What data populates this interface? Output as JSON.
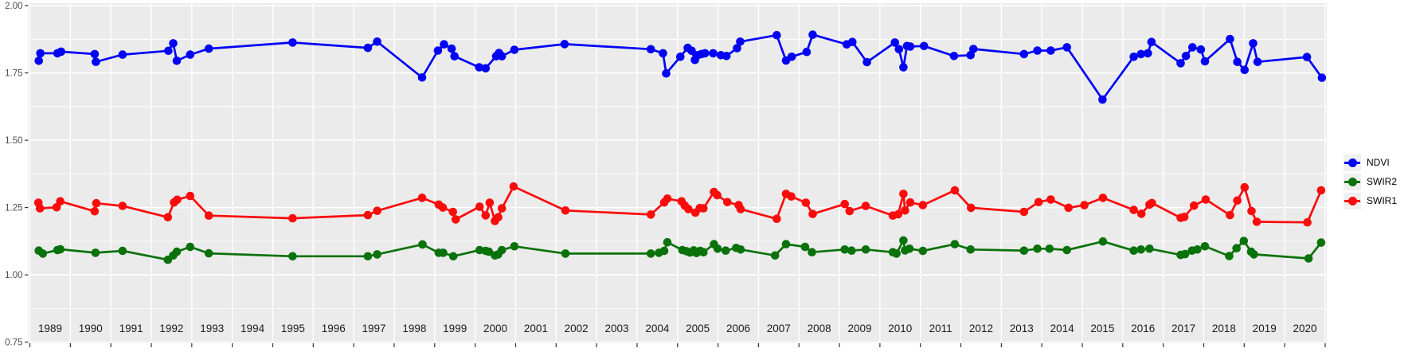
{
  "chart_data": {
    "type": "line",
    "title": "",
    "xlabel": "",
    "ylabel": "",
    "grid": true,
    "legend_position": "right",
    "x_ticks": [
      1989,
      1990,
      1991,
      1992,
      1993,
      1994,
      1995,
      1996,
      1997,
      1998,
      1999,
      2000,
      2001,
      2002,
      2003,
      2004,
      2005,
      2006,
      2007,
      2008,
      2009,
      2010,
      2011,
      2012,
      2013,
      2014,
      2015,
      2016,
      2017,
      2018,
      2019,
      2020
    ],
    "x_range": [
      1988.46,
      2020.54
    ],
    "y_range": [
      0.746,
      2.009
    ],
    "y_major_ticks": [
      0.75,
      1.0,
      1.25,
      1.5,
      1.75,
      2.0
    ],
    "y_minor_ticks": [
      0.875,
      1.125,
      1.375,
      1.625,
      1.875
    ],
    "series": [
      {
        "name": "NDVI",
        "color": "#0202f5",
        "points": [
          [
            1988.72,
            1.795
          ],
          [
            1988.76,
            1.823
          ],
          [
            1989.18,
            1.823
          ],
          [
            1989.27,
            1.829
          ],
          [
            1990.1,
            1.82
          ],
          [
            1990.13,
            1.791
          ],
          [
            1990.79,
            1.818
          ],
          [
            1991.92,
            1.832
          ],
          [
            1992.04,
            1.86
          ],
          [
            1992.13,
            1.795
          ],
          [
            1992.46,
            1.818
          ],
          [
            1992.92,
            1.84
          ],
          [
            1994.99,
            1.863
          ],
          [
            1996.85,
            1.843
          ],
          [
            1997.08,
            1.866
          ],
          [
            1998.19,
            1.733
          ],
          [
            1998.58,
            1.833
          ],
          [
            1998.73,
            1.856
          ],
          [
            1998.92,
            1.84
          ],
          [
            1998.99,
            1.812
          ],
          [
            1999.6,
            1.771
          ],
          [
            1999.76,
            1.767
          ],
          [
            2000.02,
            1.812
          ],
          [
            2000.09,
            1.824
          ],
          [
            2000.16,
            1.812
          ],
          [
            2000.47,
            1.836
          ],
          [
            2001.71,
            1.857
          ],
          [
            2003.84,
            1.838
          ],
          [
            2004.14,
            1.823
          ],
          [
            2004.22,
            1.748
          ],
          [
            2004.57,
            1.81
          ],
          [
            2004.75,
            1.843
          ],
          [
            2004.85,
            1.832
          ],
          [
            2004.93,
            1.798
          ],
          [
            2005.0,
            1.816
          ],
          [
            2005.09,
            1.82
          ],
          [
            2005.18,
            1.823
          ],
          [
            2005.38,
            1.823
          ],
          [
            2005.57,
            1.816
          ],
          [
            2005.71,
            1.813
          ],
          [
            2005.97,
            1.842
          ],
          [
            2006.05,
            1.866
          ],
          [
            2006.95,
            1.89
          ],
          [
            2007.18,
            1.796
          ],
          [
            2007.32,
            1.81
          ],
          [
            2007.69,
            1.828
          ],
          [
            2007.84,
            1.892
          ],
          [
            2008.68,
            1.856
          ],
          [
            2008.82,
            1.865
          ],
          [
            2009.18,
            1.79
          ],
          [
            2009.87,
            1.863
          ],
          [
            2009.97,
            1.838
          ],
          [
            2010.08,
            1.771
          ],
          [
            2010.17,
            1.85
          ],
          [
            2010.25,
            1.848
          ],
          [
            2010.59,
            1.85
          ],
          [
            2011.33,
            1.813
          ],
          [
            2011.74,
            1.816
          ],
          [
            2011.81,
            1.839
          ],
          [
            2013.06,
            1.82
          ],
          [
            2013.39,
            1.833
          ],
          [
            2013.72,
            1.833
          ],
          [
            2014.12,
            1.845
          ],
          [
            2015.0,
            1.651
          ],
          [
            2015.77,
            1.81
          ],
          [
            2015.95,
            1.82
          ],
          [
            2016.12,
            1.823
          ],
          [
            2016.21,
            1.865
          ],
          [
            2016.93,
            1.786
          ],
          [
            2017.06,
            1.813
          ],
          [
            2017.22,
            1.845
          ],
          [
            2017.43,
            1.837
          ],
          [
            2017.53,
            1.793
          ],
          [
            2018.15,
            1.876
          ],
          [
            2018.33,
            1.791
          ],
          [
            2018.51,
            1.761
          ],
          [
            2018.72,
            1.86
          ],
          [
            2018.83,
            1.791
          ],
          [
            2020.05,
            1.809
          ],
          [
            2020.42,
            1.732
          ]
        ]
      },
      {
        "name": "SWIR2",
        "color": "#0a720a",
        "points": [
          [
            1988.72,
            1.09
          ],
          [
            1988.82,
            1.079
          ],
          [
            1989.18,
            1.092
          ],
          [
            1989.25,
            1.095
          ],
          [
            1990.12,
            1.082
          ],
          [
            1990.79,
            1.089
          ],
          [
            1991.91,
            1.056
          ],
          [
            1992.04,
            1.072
          ],
          [
            1992.13,
            1.086
          ],
          [
            1992.46,
            1.104
          ],
          [
            1992.92,
            1.08
          ],
          [
            1994.99,
            1.069
          ],
          [
            1996.85,
            1.069
          ],
          [
            1997.08,
            1.076
          ],
          [
            1998.2,
            1.113
          ],
          [
            1998.6,
            1.082
          ],
          [
            1998.71,
            1.082
          ],
          [
            1998.96,
            1.069
          ],
          [
            1999.61,
            1.092
          ],
          [
            1999.76,
            1.089
          ],
          [
            1999.84,
            1.086
          ],
          [
            1999.99,
            1.072
          ],
          [
            2000.07,
            1.076
          ],
          [
            2000.16,
            1.092
          ],
          [
            2000.47,
            1.106
          ],
          [
            2001.73,
            1.079
          ],
          [
            2003.84,
            1.079
          ],
          [
            2004.04,
            1.082
          ],
          [
            2004.17,
            1.089
          ],
          [
            2004.25,
            1.121
          ],
          [
            2004.62,
            1.092
          ],
          [
            2004.72,
            1.088
          ],
          [
            2004.81,
            1.083
          ],
          [
            2004.9,
            1.091
          ],
          [
            2004.97,
            1.081
          ],
          [
            2005.06,
            1.089
          ],
          [
            2005.14,
            1.084
          ],
          [
            2005.4,
            1.114
          ],
          [
            2005.49,
            1.097
          ],
          [
            2005.69,
            1.09
          ],
          [
            2005.95,
            1.1
          ],
          [
            2006.06,
            1.094
          ],
          [
            2006.91,
            1.072
          ],
          [
            2007.18,
            1.114
          ],
          [
            2007.65,
            1.104
          ],
          [
            2007.82,
            1.084
          ],
          [
            2008.63,
            1.094
          ],
          [
            2008.8,
            1.09
          ],
          [
            2009.15,
            1.094
          ],
          [
            2009.82,
            1.084
          ],
          [
            2009.91,
            1.079
          ],
          [
            2010.08,
            1.128
          ],
          [
            2010.12,
            1.091
          ],
          [
            2010.23,
            1.097
          ],
          [
            2010.56,
            1.089
          ],
          [
            2011.35,
            1.114
          ],
          [
            2011.74,
            1.094
          ],
          [
            2013.06,
            1.09
          ],
          [
            2013.39,
            1.097
          ],
          [
            2013.69,
            1.097
          ],
          [
            2014.12,
            1.092
          ],
          [
            2015.01,
            1.124
          ],
          [
            2015.77,
            1.09
          ],
          [
            2015.95,
            1.094
          ],
          [
            2016.16,
            1.097
          ],
          [
            2016.93,
            1.074
          ],
          [
            2017.04,
            1.077
          ],
          [
            2017.21,
            1.09
          ],
          [
            2017.34,
            1.094
          ],
          [
            2017.53,
            1.106
          ],
          [
            2018.13,
            1.07
          ],
          [
            2018.31,
            1.099
          ],
          [
            2018.49,
            1.126
          ],
          [
            2018.67,
            1.086
          ],
          [
            2018.74,
            1.076
          ],
          [
            2020.09,
            1.061
          ],
          [
            2020.4,
            1.12
          ]
        ]
      },
      {
        "name": "SWIR1",
        "color": "#fb0b0b",
        "points": [
          [
            1988.71,
            1.268
          ],
          [
            1988.75,
            1.247
          ],
          [
            1989.16,
            1.251
          ],
          [
            1989.25,
            1.273
          ],
          [
            1990.1,
            1.236
          ],
          [
            1990.14,
            1.266
          ],
          [
            1990.79,
            1.256
          ],
          [
            1991.91,
            1.214
          ],
          [
            1992.06,
            1.269
          ],
          [
            1992.14,
            1.279
          ],
          [
            1992.46,
            1.293
          ],
          [
            1992.92,
            1.22
          ],
          [
            1994.99,
            1.21
          ],
          [
            1996.85,
            1.222
          ],
          [
            1997.08,
            1.238
          ],
          [
            1998.19,
            1.286
          ],
          [
            1998.6,
            1.261
          ],
          [
            1998.7,
            1.25
          ],
          [
            1998.95,
            1.234
          ],
          [
            1999.02,
            1.206
          ],
          [
            1999.61,
            1.253
          ],
          [
            1999.76,
            1.221
          ],
          [
            1999.86,
            1.268
          ],
          [
            1999.99,
            1.2
          ],
          [
            2000.07,
            1.214
          ],
          [
            2000.16,
            1.247
          ],
          [
            2000.45,
            1.328
          ],
          [
            2001.73,
            1.239
          ],
          [
            2003.84,
            1.224
          ],
          [
            2004.17,
            1.269
          ],
          [
            2004.25,
            1.283
          ],
          [
            2004.6,
            1.273
          ],
          [
            2004.68,
            1.257
          ],
          [
            2004.77,
            1.244
          ],
          [
            2004.94,
            1.231
          ],
          [
            2005.05,
            1.248
          ],
          [
            2005.14,
            1.247
          ],
          [
            2005.4,
            1.308
          ],
          [
            2005.48,
            1.296
          ],
          [
            2005.73,
            1.27
          ],
          [
            2006.01,
            1.259
          ],
          [
            2006.06,
            1.244
          ],
          [
            2006.95,
            1.208
          ],
          [
            2007.18,
            1.301
          ],
          [
            2007.31,
            1.291
          ],
          [
            2007.67,
            1.268
          ],
          [
            2007.84,
            1.226
          ],
          [
            2008.63,
            1.263
          ],
          [
            2008.75,
            1.237
          ],
          [
            2009.15,
            1.256
          ],
          [
            2009.82,
            1.22
          ],
          [
            2009.95,
            1.225
          ],
          [
            2010.08,
            1.301
          ],
          [
            2010.12,
            1.239
          ],
          [
            2010.25,
            1.269
          ],
          [
            2010.56,
            1.259
          ],
          [
            2011.35,
            1.314
          ],
          [
            2011.75,
            1.249
          ],
          [
            2013.06,
            1.234
          ],
          [
            2013.42,
            1.27
          ],
          [
            2013.72,
            1.28
          ],
          [
            2014.16,
            1.249
          ],
          [
            2014.55,
            1.259
          ],
          [
            2015.01,
            1.286
          ],
          [
            2015.77,
            1.241
          ],
          [
            2015.96,
            1.227
          ],
          [
            2016.16,
            1.261
          ],
          [
            2016.22,
            1.267
          ],
          [
            2016.93,
            1.212
          ],
          [
            2017.02,
            1.215
          ],
          [
            2017.26,
            1.257
          ],
          [
            2017.55,
            1.28
          ],
          [
            2018.15,
            1.222
          ],
          [
            2018.33,
            1.276
          ],
          [
            2018.51,
            1.325
          ],
          [
            2018.68,
            1.237
          ],
          [
            2018.81,
            1.197
          ],
          [
            2020.06,
            1.195
          ],
          [
            2020.4,
            1.314
          ]
        ]
      }
    ]
  },
  "legend": {
    "items": [
      {
        "label": "NDVI",
        "color": "#0202f5"
      },
      {
        "label": "SWIR2",
        "color": "#0a720a"
      },
      {
        "label": "SWIR1",
        "color": "#fb0b0b"
      }
    ]
  },
  "colors": {
    "panel_bg": "#ebebeb",
    "gridline": "#ffffff",
    "axis_text_y": "#4d4d4d",
    "axis_text_x": "#1c1c1c",
    "tick_mark": "#333333",
    "legend_key_bg": "#f0f0f0",
    "page_bg": "#ffffff"
  }
}
